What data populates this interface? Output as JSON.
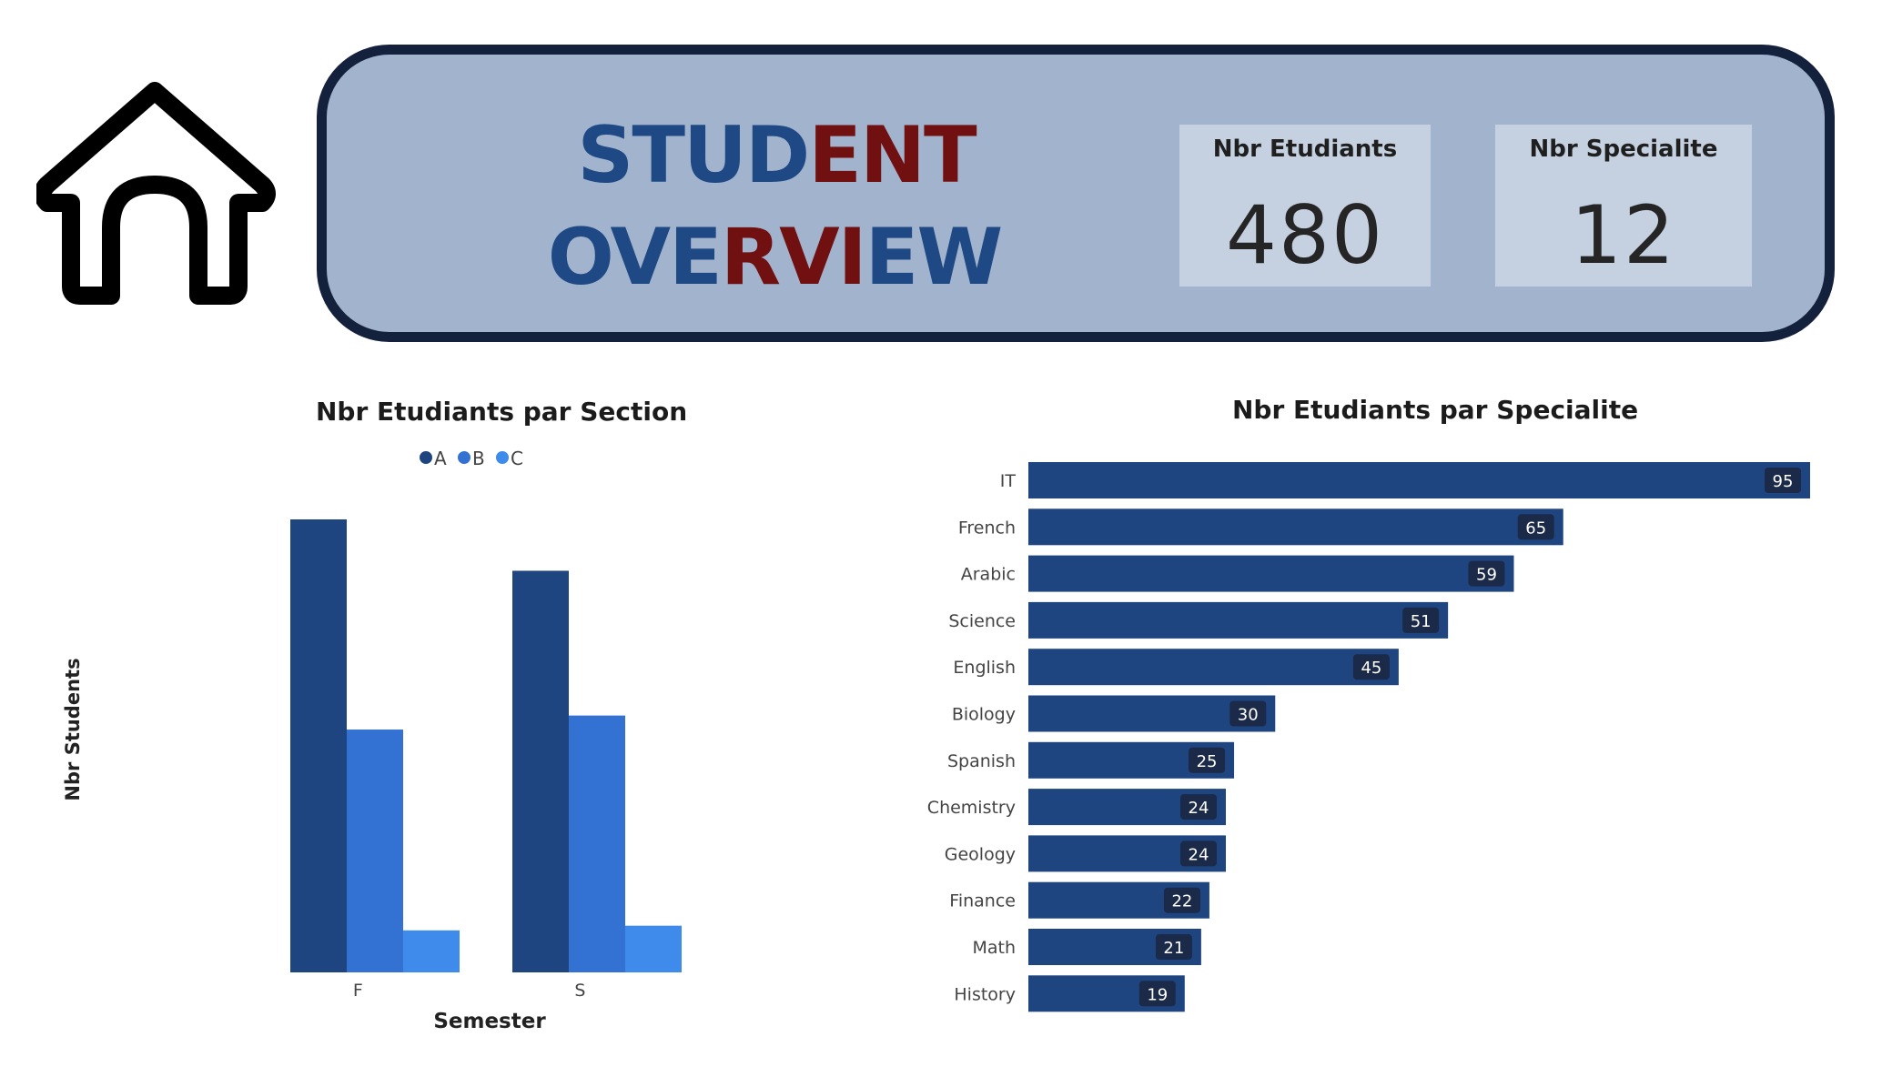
{
  "header": {
    "title_line1_part1": "STUD",
    "title_line1_part2": "ENT",
    "title_line2_part1": "OVE",
    "title_line2_part2": "RVI",
    "title_line2_part3": "EW",
    "colors": {
      "blue": "#1f4985",
      "red": "#711010",
      "banner": "#a2b4cd",
      "border": "#14213d"
    }
  },
  "kpis": [
    {
      "label": "Nbr Etudiants",
      "value": "480"
    },
    {
      "label": "Nbr Specialite",
      "value": "12"
    }
  ],
  "icons": {
    "home": "home-icon"
  },
  "chart_data": [
    {
      "type": "bar",
      "title": "Nbr Etudiants par Section",
      "xlabel": "Semester",
      "ylabel": "Nbr Students",
      "categories": [
        "F",
        "S"
      ],
      "series": [
        {
          "name": "A",
          "color": "#1f4580",
          "values": [
            97,
            86
          ]
        },
        {
          "name": "B",
          "color": "#3371d3",
          "values": [
            52,
            55
          ]
        },
        {
          "name": "C",
          "color": "#3f8beb",
          "values": [
            9,
            10
          ]
        }
      ],
      "ylim": [
        0,
        97
      ],
      "legend": "top-center",
      "grid": false
    },
    {
      "type": "bar",
      "orientation": "horizontal",
      "title": "Nbr Etudiants par Specialite",
      "categories": [
        "IT",
        "French",
        "Arabic",
        "Science",
        "English",
        "Biology",
        "Spanish",
        "Chemistry",
        "Geology",
        "Finance",
        "Math",
        "History"
      ],
      "values": [
        95,
        65,
        59,
        51,
        45,
        30,
        25,
        24,
        24,
        22,
        21,
        19
      ],
      "color": "#1f4580",
      "label_bg": "#1a2a48",
      "grid": false
    }
  ]
}
